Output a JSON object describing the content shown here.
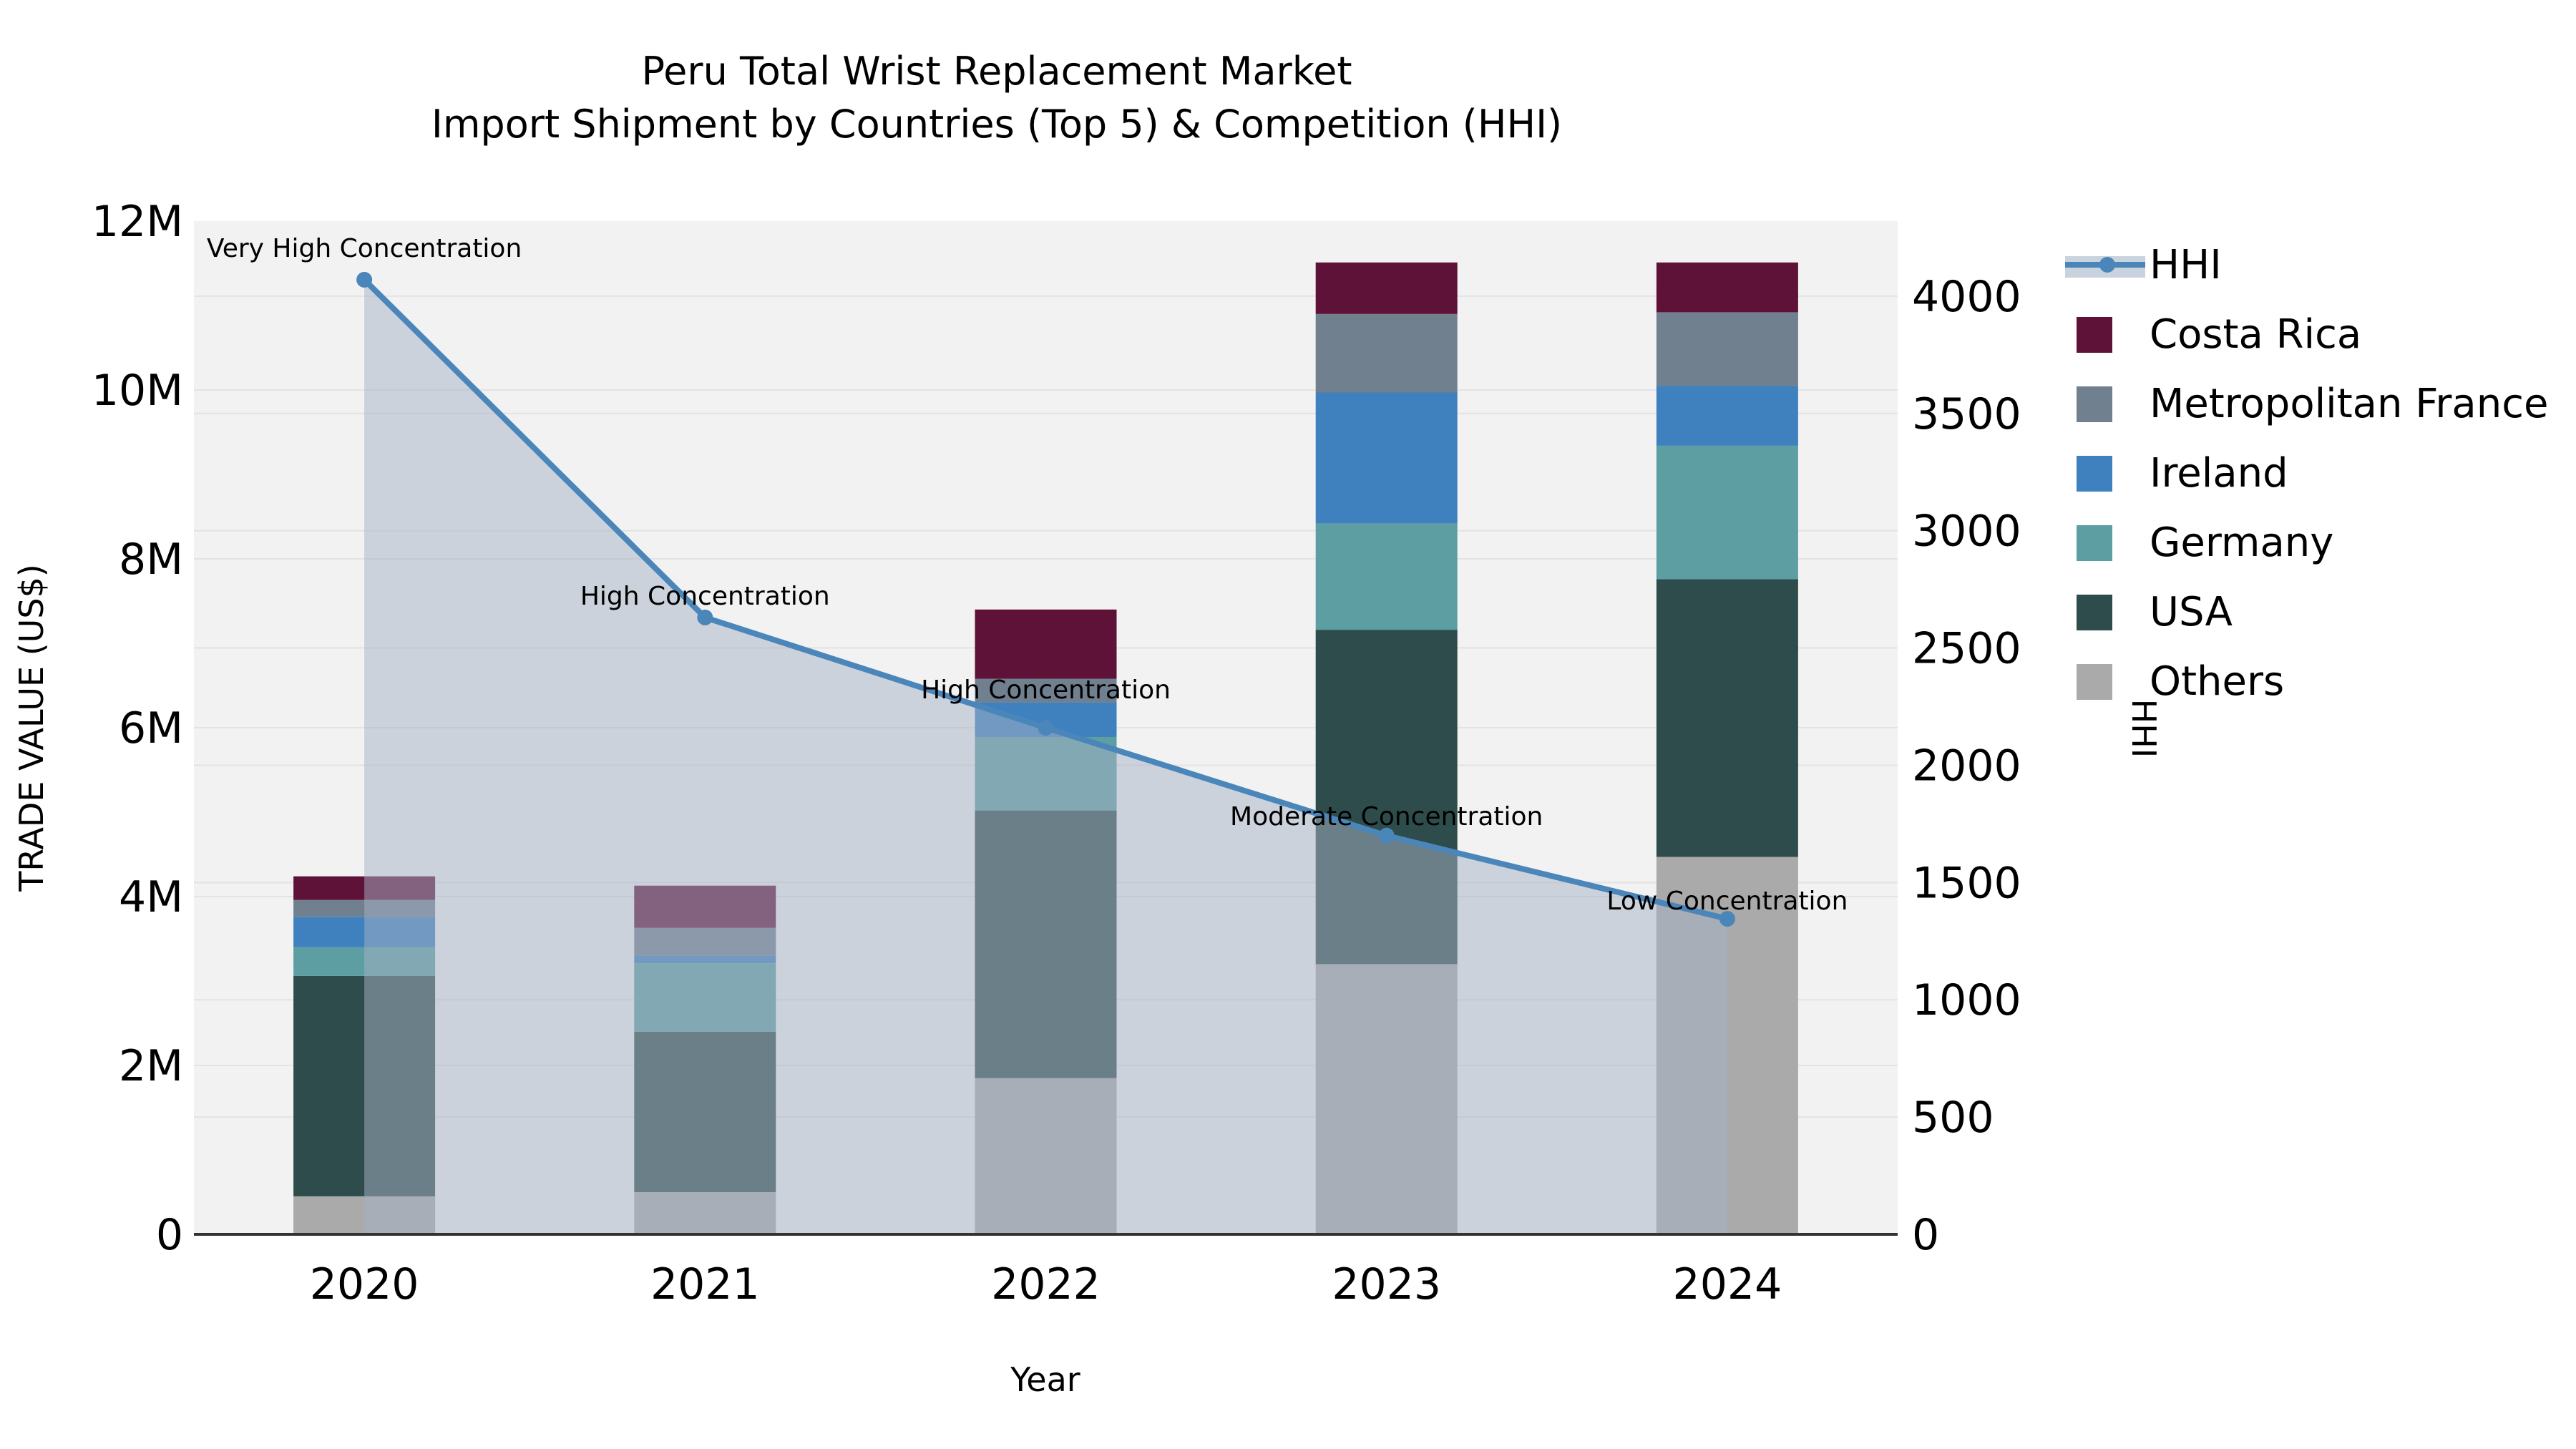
{
  "title": {
    "line1": "Peru Total Wrist Replacement Market",
    "line2": "Import Shipment by Countries (Top 5) & Competition (HHI)"
  },
  "axes": {
    "left": {
      "title": "TRADE VALUE (US$)",
      "tick_labels": [
        "0",
        "2M",
        "4M",
        "6M",
        "8M",
        "10M",
        "12M"
      ],
      "tick_values_musd": [
        0,
        2,
        4,
        6,
        8,
        10,
        12
      ],
      "range_musd": [
        0,
        12
      ]
    },
    "right": {
      "title": "HHI",
      "tick_labels": [
        "0",
        "500",
        "1000",
        "1500",
        "2000",
        "2500",
        "3000",
        "3500",
        "4000"
      ],
      "tick_values": [
        0,
        500,
        1000,
        1500,
        2000,
        2500,
        3000,
        3500,
        4000
      ],
      "range": [
        0,
        4320
      ]
    },
    "x": {
      "title": "Year",
      "tick_labels": [
        "2020",
        "2021",
        "2022",
        "2023",
        "2024"
      ]
    }
  },
  "legend": {
    "items": [
      {
        "label": "HHI",
        "kind": "line",
        "color": "#4a86ba"
      },
      {
        "label": "Costa Rica",
        "kind": "square",
        "color": "#5f1237"
      },
      {
        "label": "Metropolitan France",
        "kind": "square",
        "color": "#70808f"
      },
      {
        "label": "Ireland",
        "kind": "square",
        "color": "#3f80be"
      },
      {
        "label": "Germany",
        "kind": "square",
        "color": "#5c9ea1"
      },
      {
        "label": "USA",
        "kind": "square",
        "color": "#2e4c4b"
      },
      {
        "label": "Others",
        "kind": "square",
        "color": "#a9aaa9"
      }
    ]
  },
  "chart_data": [
    {
      "type": "bar",
      "stacked": true,
      "categories": [
        "2020",
        "2021",
        "2022",
        "2023",
        "2024"
      ],
      "unit": "million US$",
      "series": [
        {
          "name": "Others",
          "color": "#a9aaa9",
          "values": [
            0.45,
            0.5,
            1.85,
            3.2,
            4.47
          ]
        },
        {
          "name": "USA",
          "color": "#2e4c4b",
          "values": [
            2.61,
            1.9,
            3.17,
            3.96,
            3.29
          ]
        },
        {
          "name": "Germany",
          "color": "#5c9ea1",
          "values": [
            0.34,
            0.81,
            0.87,
            1.26,
            1.58
          ]
        },
        {
          "name": "Ireland",
          "color": "#3f80be",
          "values": [
            0.36,
            0.09,
            0.41,
            1.55,
            0.71
          ]
        },
        {
          "name": "Metropolitan France",
          "color": "#70808f",
          "values": [
            0.2,
            0.33,
            0.28,
            0.93,
            0.87
          ]
        },
        {
          "name": "Costa Rica",
          "color": "#5f1237",
          "values": [
            0.28,
            0.5,
            0.82,
            0.61,
            0.59
          ]
        }
      ],
      "totals_musd": [
        4.24,
        4.13,
        7.4,
        11.51,
        11.51
      ],
      "xlabel": "Year",
      "ylabel": "TRADE VALUE (US$)",
      "ylim_musd": [
        0,
        12
      ],
      "grid": true,
      "legend_position": "upper right outside"
    },
    {
      "type": "line",
      "name": "HHI",
      "x": [
        "2020",
        "2021",
        "2022",
        "2023",
        "2024"
      ],
      "values": [
        4070,
        2630,
        2160,
        1700,
        1345
      ],
      "color": "#4a86ba",
      "area_fill": true,
      "area_color": "#a5b2c6",
      "area_alpha": 0.5,
      "yaxis": "right",
      "ylabel": "HHI",
      "ylim": [
        0,
        4320
      ],
      "annotations": [
        {
          "x": "2020",
          "text": "Very High Concentration",
          "dy": -32
        },
        {
          "x": "2021",
          "text": "High Concentration",
          "dy": -18
        },
        {
          "x": "2022",
          "text": "High Concentration",
          "dy": -41
        },
        {
          "x": "2023",
          "text": "Moderate Concentration",
          "dy": -15
        },
        {
          "x": "2024",
          "text": "Low Concentration",
          "dy": -13
        }
      ]
    }
  ],
  "style": {
    "plot_bg": "#f2f2f2",
    "grid_color": "#e3e3e3",
    "spine_color": "#333333",
    "text_color": "#000000",
    "hhi_line_color": "#4a86ba",
    "area_fill_color": "#a5b2c6",
    "area_fill_alpha": 0.5
  }
}
